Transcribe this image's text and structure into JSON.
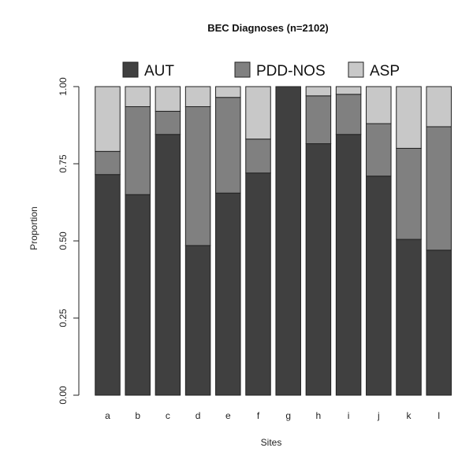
{
  "chart_data": {
    "type": "bar",
    "stacked": true,
    "title": "BEC Diagnoses (n=2102)",
    "xlabel": "Sites",
    "ylabel": "Proportion",
    "ylim": [
      0,
      1
    ],
    "yticks": [
      "0.00",
      "0.25",
      "0.50",
      "0.75",
      "1.00"
    ],
    "legend_position": "top",
    "categories": [
      "a",
      "b",
      "c",
      "d",
      "e",
      "f",
      "g",
      "h",
      "i",
      "j",
      "k",
      "l"
    ],
    "series": [
      {
        "name": "AUT",
        "color": "#404040",
        "values": [
          0.715,
          0.65,
          0.845,
          0.485,
          0.655,
          0.72,
          1.0,
          0.815,
          0.845,
          0.71,
          0.505,
          0.47
        ]
      },
      {
        "name": "PDD-NOS",
        "color": "#808080",
        "values": [
          0.075,
          0.285,
          0.075,
          0.45,
          0.31,
          0.11,
          0.0,
          0.155,
          0.13,
          0.17,
          0.295,
          0.4
        ]
      },
      {
        "name": "ASP",
        "color": "#c8c8c8",
        "values": [
          0.21,
          0.065,
          0.08,
          0.065,
          0.035,
          0.17,
          0.0,
          0.03,
          0.025,
          0.12,
          0.2,
          0.13
        ]
      }
    ]
  }
}
